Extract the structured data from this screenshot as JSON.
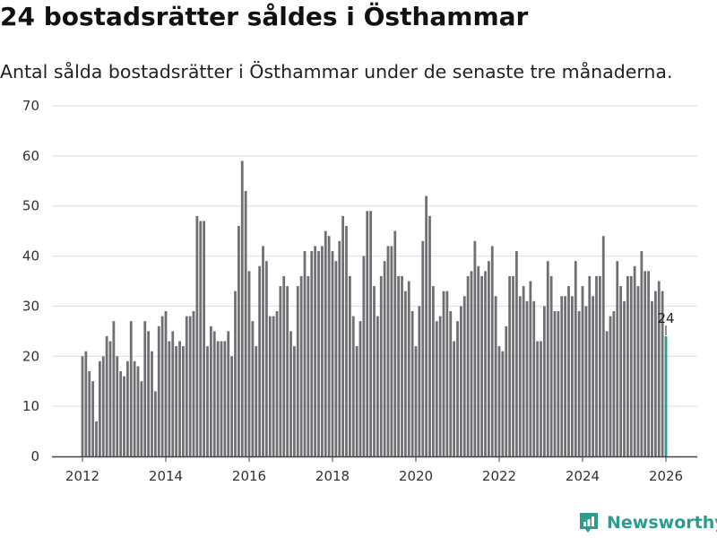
{
  "header": {
    "title": "24 bostadsrätter såldes i Östhammar",
    "subtitle": "Antal sålda bostadsrätter i Östhammar under de senaste tre månaderna."
  },
  "brand": {
    "name": "Newsworthy",
    "icon": "newsworthy-logo-icon"
  },
  "colors": {
    "bar": "#707074",
    "highlight": "#2a9d8f",
    "grid": "#dddddd",
    "axis": "#444444"
  },
  "chart_data": {
    "type": "bar",
    "title": "Antal sålda bostadsrätter i Östhammar under de senaste tre månaderna.",
    "xlabel": "",
    "ylabel": "",
    "ylim": [
      0,
      70
    ],
    "yticks": [
      0,
      10,
      20,
      30,
      40,
      50,
      60,
      70
    ],
    "xticks": [
      2012,
      2014,
      2016,
      2018,
      2020,
      2022,
      2024,
      2026
    ],
    "grid": true,
    "x_start": "2012-01",
    "x_end": "2026-01",
    "values": [
      20,
      21,
      17,
      15,
      7,
      19,
      20,
      24,
      23,
      27,
      20,
      17,
      16,
      19,
      27,
      19,
      18,
      15,
      27,
      25,
      21,
      13,
      26,
      28,
      29,
      23,
      25,
      22,
      23,
      22,
      28,
      28,
      29,
      48,
      47,
      47,
      22,
      26,
      25,
      23,
      23,
      23,
      25,
      20,
      33,
      46,
      59,
      53,
      37,
      27,
      22,
      38,
      42,
      39,
      28,
      28,
      29,
      34,
      36,
      34,
      25,
      22,
      34,
      36,
      41,
      36,
      41,
      42,
      41,
      42,
      45,
      44,
      41,
      39,
      43,
      48,
      46,
      36,
      28,
      22,
      27,
      40,
      49,
      49,
      34,
      28,
      36,
      39,
      42,
      42,
      45,
      36,
      36,
      33,
      35,
      29,
      22,
      30,
      43,
      52,
      48,
      34,
      27,
      28,
      33,
      33,
      29,
      23,
      27,
      30,
      32,
      36,
      37,
      43,
      38,
      36,
      37,
      39,
      42,
      32,
      22,
      21,
      26,
      36,
      36,
      41,
      32,
      34,
      31,
      35,
      31,
      23,
      23,
      30,
      39,
      36,
      29,
      29,
      32,
      32,
      34,
      32,
      39,
      29,
      34,
      30,
      36,
      32,
      36,
      36,
      44,
      25,
      28,
      29,
      39,
      34,
      31,
      36,
      36,
      38,
      34,
      41,
      37,
      37,
      31,
      33,
      35,
      33,
      24
    ],
    "highlight_last": true,
    "data_labels": [
      {
        "value": "24",
        "text": "24"
      }
    ]
  }
}
